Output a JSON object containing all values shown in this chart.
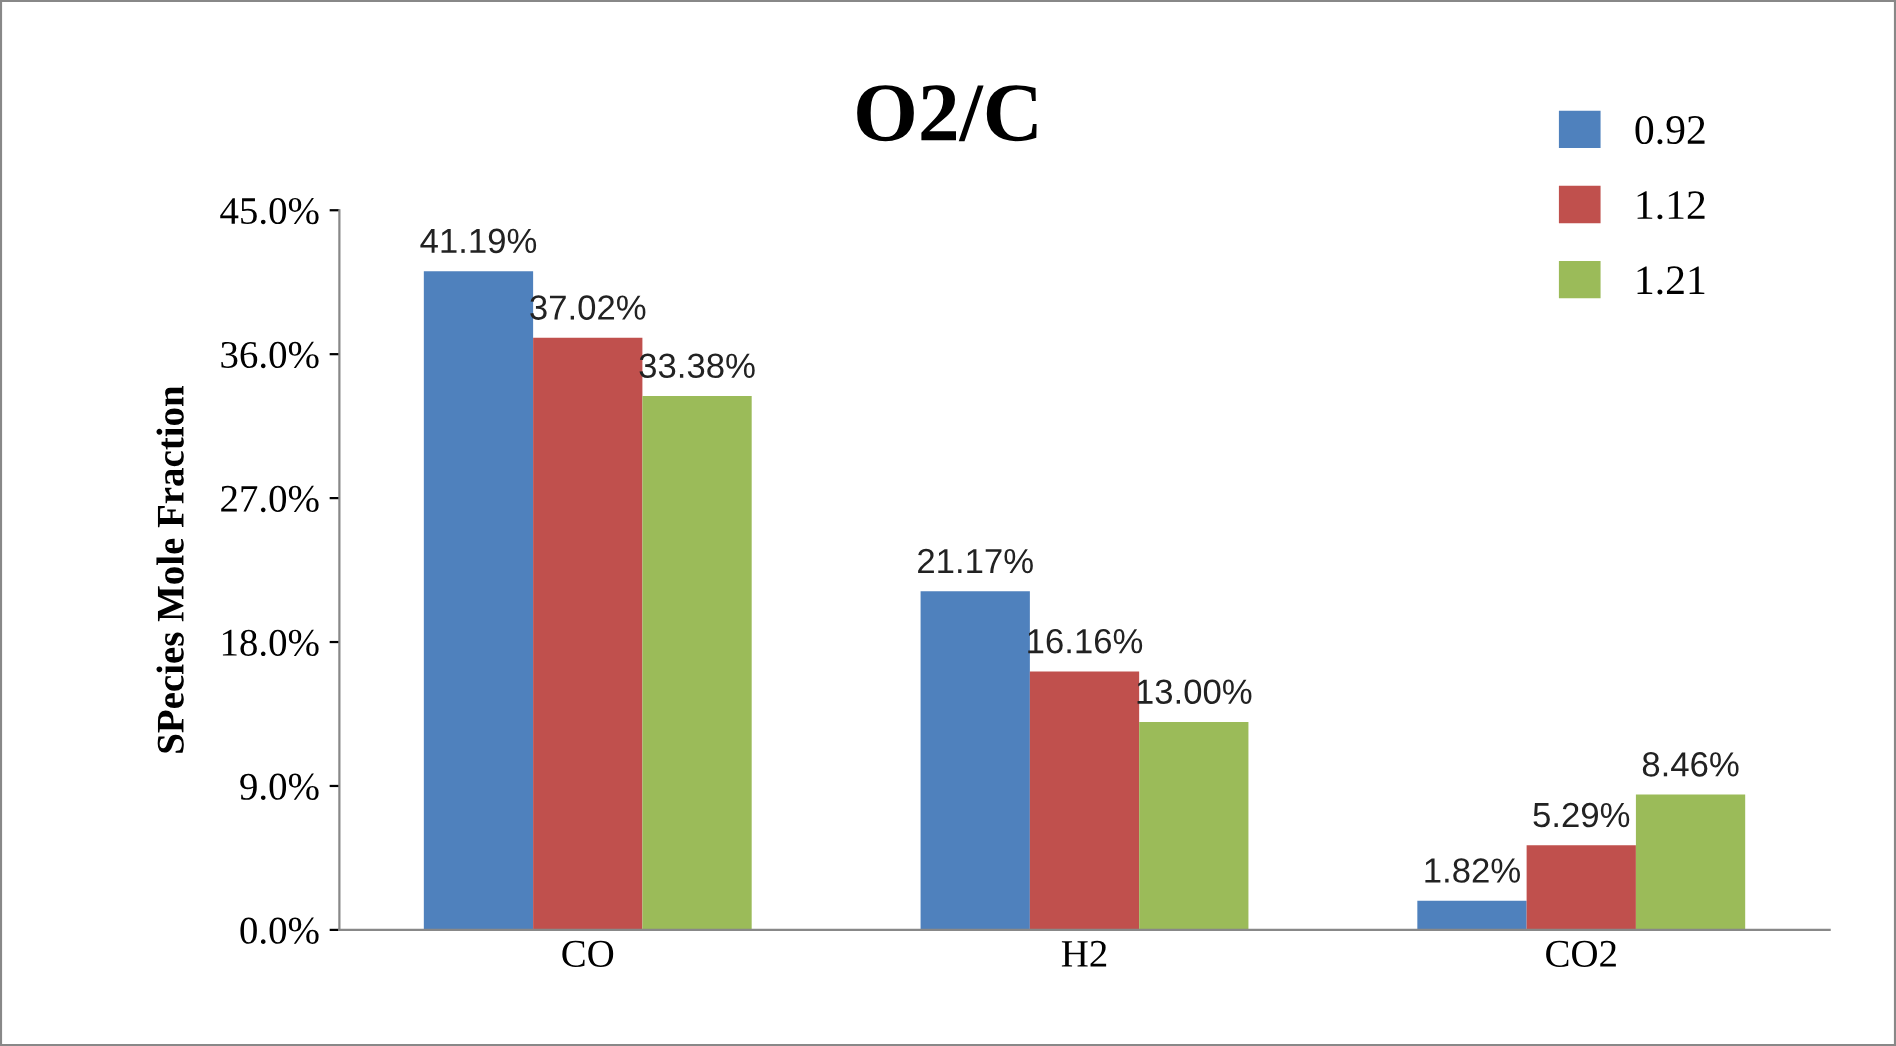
{
  "chart_data": {
    "type": "bar",
    "title": "O2/C",
    "ylabel": "SPecies Mole Fraction",
    "categories": [
      "CO",
      "H2",
      "CO2"
    ],
    "series": [
      {
        "name": "0.92",
        "color": "#4f81bd",
        "values": [
          41.19,
          21.17,
          1.82
        ],
        "value_labels": [
          "41.19%",
          "21.17%",
          "1.82%"
        ]
      },
      {
        "name": "1.12",
        "color": "#c0504d",
        "values": [
          37.02,
          16.16,
          5.29
        ],
        "value_labels": [
          "37.02%",
          "16.16%",
          "5.29%"
        ]
      },
      {
        "name": "1.21",
        "color": "#9bbb59",
        "values": [
          33.38,
          13.0,
          8.46
        ],
        "value_labels": [
          "33.38%",
          "13.00%",
          "8.46%"
        ]
      }
    ],
    "ylim": [
      0,
      45
    ],
    "yticks": [
      {
        "value": 0,
        "label": "0.0%"
      },
      {
        "value": 9,
        "label": "9.0%"
      },
      {
        "value": 18,
        "label": "18.0%"
      },
      {
        "value": 27,
        "label": "27.0%"
      },
      {
        "value": 36,
        "label": "36.0%"
      },
      {
        "value": 45,
        "label": "45.0%"
      }
    ],
    "grid": false,
    "legend": "top right"
  }
}
